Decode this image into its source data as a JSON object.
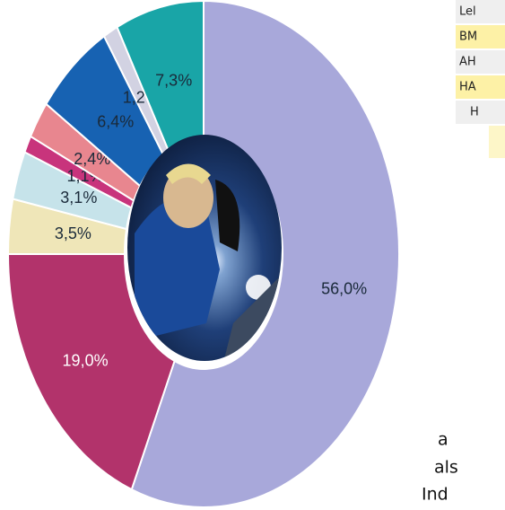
{
  "chart_data": {
    "type": "pie",
    "values": [
      56.0,
      19.0,
      3.5,
      3.1,
      1.1,
      2.4,
      6.4,
      1.2,
      7.3
    ],
    "value_labels": [
      "56,0%",
      "19,0%",
      "3,5%",
      "3,1%",
      "1,1%",
      "2,4%",
      "6,4%",
      "1,2%",
      "7,3%"
    ],
    "colors": [
      "#a8a8da",
      "#b2336b",
      "#efe6b8",
      "#c6e3ea",
      "#c8347c",
      "#e8868f",
      "#1762b2",
      "#d2d2e2",
      "#19a5a7"
    ]
  },
  "sidebar": {
    "rows": [
      "Lel",
      "BM",
      "AH",
      "HA",
      "H"
    ],
    "footer": [
      "a",
      "als",
      "Ind"
    ]
  }
}
